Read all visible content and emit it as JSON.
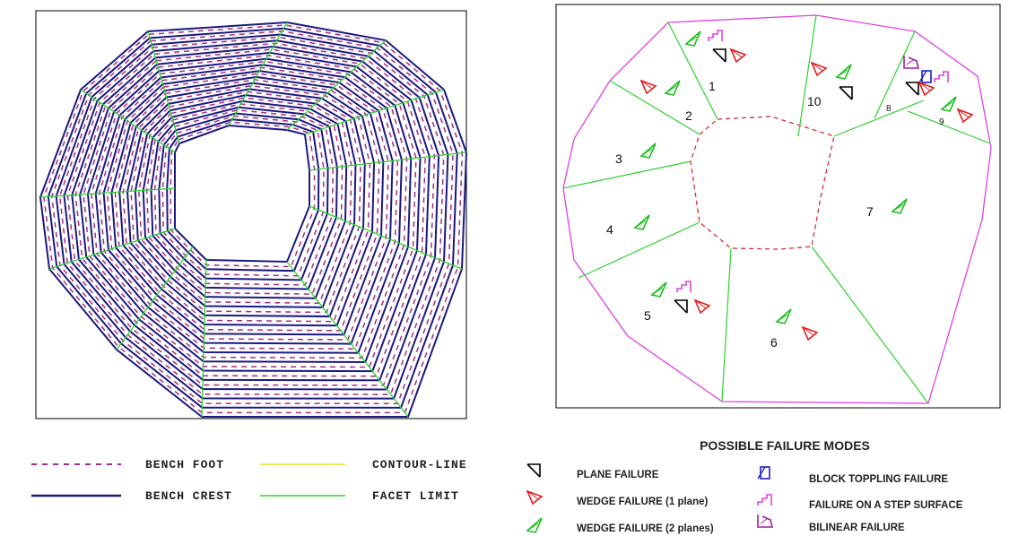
{
  "left_panel": {
    "legend": [
      "BENCH FOOT",
      "BENCH CREST",
      "CONTOUR-LINE",
      "FACET LIMIT"
    ]
  },
  "right_panel": {
    "regions": [
      "1",
      "2",
      "3",
      "4",
      "5",
      "6",
      "7",
      "8",
      "9",
      "10"
    ],
    "legend_title": "POSSIBLE FAILURE MODES",
    "legend": [
      "PLANE FAILURE",
      "WEDGE FAILURE (1 plane)",
      "WEDGE FAILURE (2 planes)",
      "BLOCK TOPPLING FAILURE",
      "FAILURE ON A STEP SURFACE",
      "BILINEAR FAILURE"
    ]
  }
}
